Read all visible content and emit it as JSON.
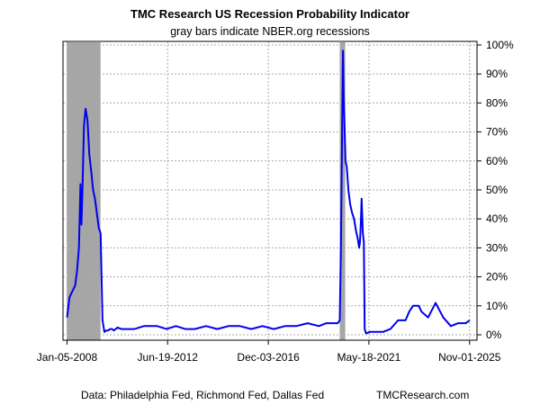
{
  "chart_data": {
    "type": "line",
    "title": "TMC Research US Recession Probability Indicator",
    "subtitle": "gray bars indicate NBER.org recessions",
    "x_tick_labels": [
      "Jan-05-2008",
      "Jun-19-2012",
      "Dec-03-2016",
      "May-18-2021",
      "Nov-01-2025"
    ],
    "y_tick_labels": [
      "0%",
      "10%",
      "20%",
      "30%",
      "40%",
      "50%",
      "60%",
      "70%",
      "80%",
      "90%",
      "100%"
    ],
    "ylim": [
      0,
      100
    ],
    "xlim": [
      "2007-11-01",
      "2026-03-01"
    ],
    "grid": true,
    "line_color": "#0000ee",
    "recession_color": "#a6a6a6",
    "recessions": [
      {
        "start": "2008-01-01",
        "end": "2009-06-30"
      },
      {
        "start": "2020-02-01",
        "end": "2020-04-30"
      }
    ],
    "series": [
      {
        "x": [
          "2008-01-05",
          "2008-02-15",
          "2008-04-01",
          "2008-05-15",
          "2008-06-15",
          "2008-07-15",
          "2008-08-10",
          "2008-08-25",
          "2008-09-10",
          "2008-10-05",
          "2008-11-01",
          "2008-12-01",
          "2009-01-01",
          "2009-02-01",
          "2009-03-01",
          "2009-04-01",
          "2009-05-01",
          "2009-06-01",
          "2009-07-01",
          "2009-08-01",
          "2009-09-01",
          "2009-10-01",
          "2009-11-01",
          "2009-12-01",
          "2010-01-01",
          "2010-02-01",
          "2010-03-01",
          "2010-04-01",
          "2010-06-01",
          "2010-09-01",
          "2011-01-01",
          "2011-06-01",
          "2012-01-01",
          "2012-06-01",
          "2012-11-01",
          "2013-04-01",
          "2013-09-01",
          "2014-03-01",
          "2014-09-01",
          "2015-03-01",
          "2015-09-01",
          "2016-03-01",
          "2016-09-01",
          "2017-03-01",
          "2017-09-01",
          "2018-03-01",
          "2018-09-01",
          "2019-03-01",
          "2019-07-01",
          "2019-11-01",
          "2020-01-01",
          "2020-02-01",
          "2020-02-20",
          "2020-03-10",
          "2020-03-25",
          "2020-04-05",
          "2020-04-15",
          "2020-04-25",
          "2020-05-05",
          "2020-05-25",
          "2020-06-20",
          "2020-07-20",
          "2020-08-20",
          "2020-09-20",
          "2020-10-20",
          "2020-11-20",
          "2020-12-10",
          "2020-12-25",
          "2021-01-10",
          "2021-01-20",
          "2021-02-10",
          "2021-02-25",
          "2021-03-10",
          "2021-04-01",
          "2021-06-01",
          "2021-09-01",
          "2022-01-01",
          "2022-05-01",
          "2022-09-01",
          "2023-01-01",
          "2023-03-01",
          "2023-05-01",
          "2023-08-01",
          "2023-09-15",
          "2024-01-01",
          "2024-05-01",
          "2024-09-01",
          "2025-01-01",
          "2025-05-01",
          "2025-09-01",
          "2025-11-01"
        ],
        "y": [
          6,
          13,
          15,
          17,
          22,
          30,
          52,
          38,
          50,
          72,
          78,
          74,
          62,
          56,
          50,
          47,
          42,
          37,
          35,
          5,
          1,
          1.5,
          1.5,
          2,
          2,
          1.5,
          2,
          2.5,
          2,
          2,
          2,
          3,
          3,
          2,
          3,
          2,
          2,
          3,
          2,
          3,
          3,
          2,
          3,
          2,
          3,
          3,
          4,
          3,
          4,
          4,
          4,
          5,
          30,
          70,
          98,
          82,
          75,
          68,
          60,
          58,
          50,
          45,
          42,
          40,
          36,
          33,
          30,
          32,
          40,
          47,
          35,
          32,
          2,
          0.5,
          1,
          1,
          1,
          2,
          5,
          5,
          8,
          10,
          10,
          8,
          6,
          11,
          6,
          3,
          4,
          4,
          5
        ]
      }
    ]
  },
  "footer": {
    "source": "Data: Philadelphia Fed, Richmond Fed, Dallas Fed",
    "credit": "TMCResearch.com"
  }
}
